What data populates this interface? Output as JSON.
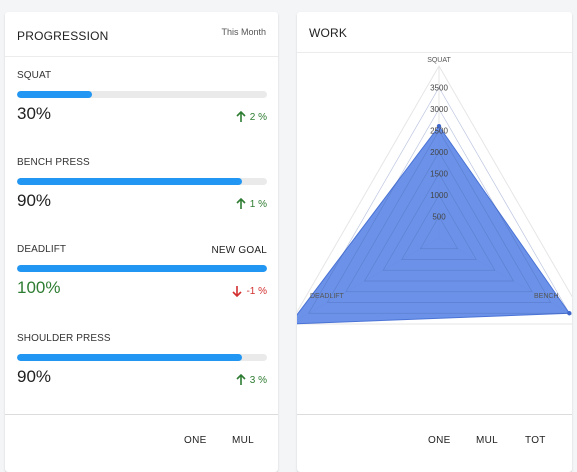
{
  "progression": {
    "title": "PROGRESSION",
    "period": "This Month",
    "items": [
      {
        "label": "SQUAT",
        "value": "30%",
        "progress": 0.3,
        "change": "2 %",
        "direction": "up",
        "action": ""
      },
      {
        "label": "BENCH PRESS",
        "value": "90%",
        "progress": 0.9,
        "change": "1 %",
        "direction": "up",
        "action": ""
      },
      {
        "label": "DEADLIFT",
        "value": "100%",
        "progress": 1.0,
        "change": "-1 %",
        "direction": "down",
        "action": "NEW GOAL"
      },
      {
        "label": "SHOULDER PRESS",
        "value": "90%",
        "progress": 0.9,
        "change": "3 %",
        "direction": "up",
        "action": ""
      }
    ],
    "footer": {
      "btn1": "ONE",
      "btn2": "MUL"
    }
  },
  "work": {
    "title": "WORK",
    "footer": {
      "btn1": "ONE",
      "btn2": "MUL",
      "btn3": "TOT"
    }
  },
  "colors": {
    "accent": "#2196f3",
    "up": "#2e7d32",
    "down": "#d32f2f",
    "radar_fill": "#5b86e5"
  },
  "chart_data": {
    "type": "radar",
    "axes": [
      "SQUAT",
      "BENCH",
      "DEADLIFT"
    ],
    "ticks": [
      500,
      1000,
      1500,
      2000,
      2500,
      3000,
      3500
    ],
    "max": 4000,
    "series": [
      {
        "values": [
          2600,
          3500,
          4000
        ]
      }
    ]
  }
}
